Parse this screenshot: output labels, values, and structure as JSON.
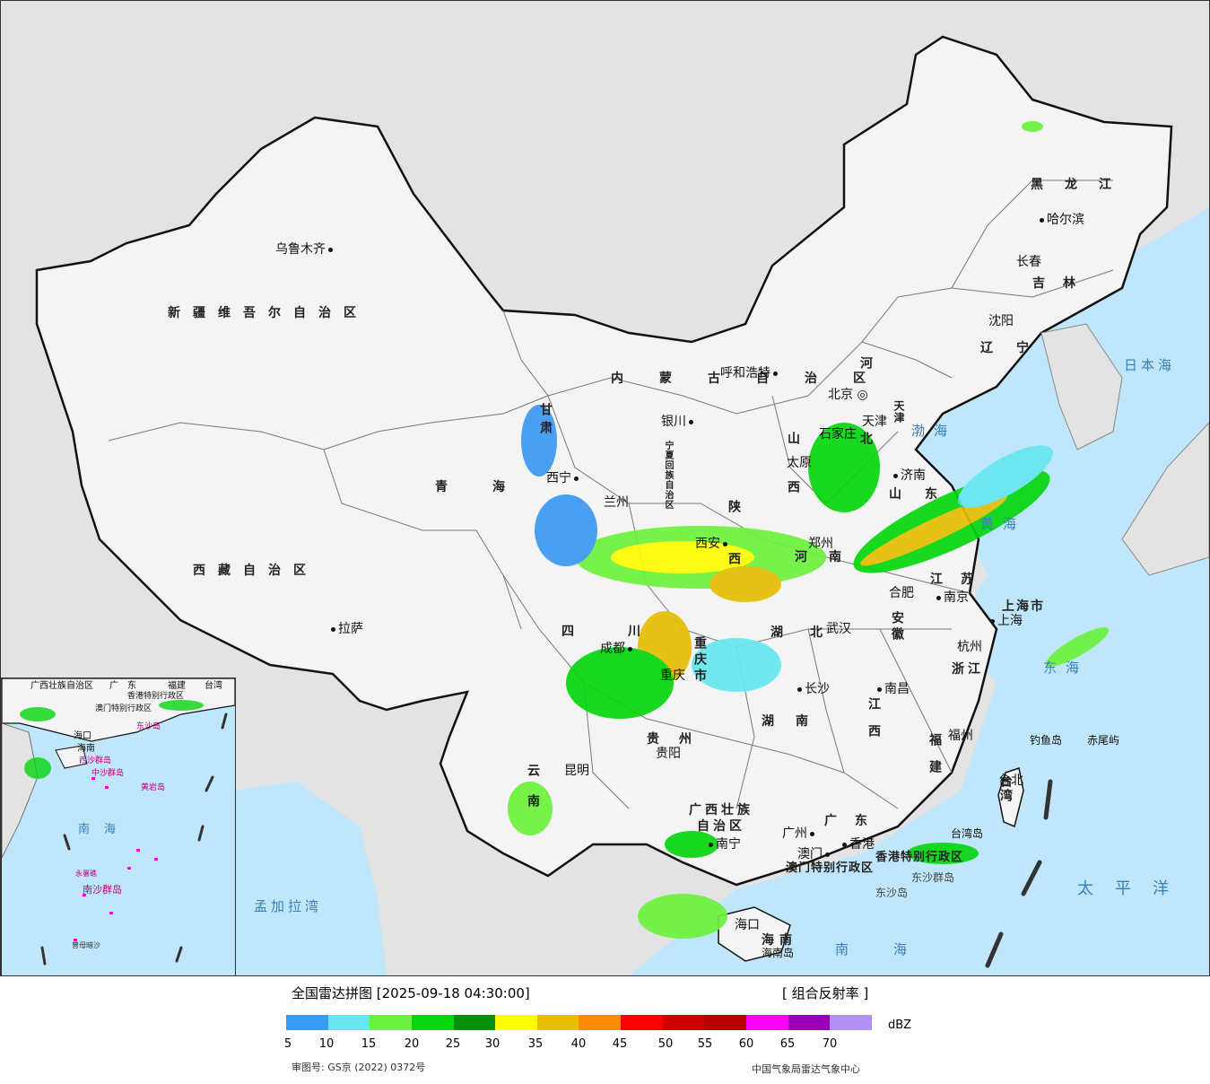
{
  "map": {
    "provinces": [
      {
        "key": "xinjiang",
        "name": "新疆维吾尔自治区"
      },
      {
        "key": "xizang",
        "name": "西藏自治区"
      },
      {
        "key": "qinghai",
        "name": "青海"
      },
      {
        "key": "gansu",
        "name": "甘肃"
      },
      {
        "key": "sichuan",
        "name": "四川"
      },
      {
        "key": "yunnan",
        "name": "云南"
      },
      {
        "key": "guizhou",
        "name": "贵州"
      },
      {
        "key": "guangxi",
        "name": "广西壮族自治区"
      },
      {
        "key": "guangdong",
        "name": "广东"
      },
      {
        "key": "hunan",
        "name": "湖南"
      },
      {
        "key": "hubei",
        "name": "湖北"
      },
      {
        "key": "jiangxi",
        "name": "江西"
      },
      {
        "key": "fujian",
        "name": "福建"
      },
      {
        "key": "zhejiang",
        "name": "浙江"
      },
      {
        "key": "jiangsu",
        "name": "江苏"
      },
      {
        "key": "anhui",
        "name": "安徽"
      },
      {
        "key": "henan",
        "name": "河南"
      },
      {
        "key": "shandong",
        "name": "山东"
      },
      {
        "key": "shanxi",
        "name": "山西"
      },
      {
        "key": "shaanxi",
        "name": "陕西"
      },
      {
        "key": "hebei",
        "name": "河北"
      },
      {
        "key": "neimenggu",
        "name": "内蒙古自治区"
      },
      {
        "key": "heilongjiang",
        "name": "黑龙江"
      },
      {
        "key": "jilin",
        "name": "吉林"
      },
      {
        "key": "liaoning",
        "name": "辽宁"
      },
      {
        "key": "ningxia",
        "name": "宁夏回族自治区"
      },
      {
        "key": "chongqing",
        "name": "重庆市"
      },
      {
        "key": "shanghai",
        "name": "上海市"
      },
      {
        "key": "tianjin",
        "name": "天津"
      },
      {
        "key": "taiwan",
        "name": "台湾"
      },
      {
        "key": "hainan",
        "name": "海南"
      },
      {
        "key": "hongkong",
        "name": "香港特别行政区"
      },
      {
        "key": "macau",
        "name": "澳门特别行政区"
      }
    ],
    "cities": {
      "urumqi": "乌鲁木齐",
      "lhasa": "拉萨",
      "xining": "西宁",
      "lanzhou": "兰州",
      "yinchuan": "银川",
      "hohhot": "呼和浩特",
      "beijing": "北京",
      "tianjin": "天津",
      "shijiazhuang": "石家庄",
      "taiyuan": "太原",
      "jinan": "济南",
      "zhengzhou": "郑州",
      "xian": "西安",
      "chengdu": "成都",
      "chongqing": "重庆",
      "guiyang": "贵阳",
      "kunming": "昆明",
      "nanning": "南宁",
      "guangzhou": "广州",
      "hongkong": "香港",
      "macau": "澳门",
      "haikou": "海口",
      "changsha": "长沙",
      "wuhan": "武汉",
      "nanchang": "南昌",
      "hefei": "合肥",
      "nanjing": "南京",
      "shanghai": "上海",
      "hangzhou": "杭州",
      "fuzhou": "福州",
      "taipei": "台北",
      "harbin": "哈尔滨",
      "changchun": "长春",
      "shenyang": "沈阳"
    },
    "islands": {
      "diaoyu": "钓鱼岛",
      "chiwei": "赤尾屿",
      "taiwan_island": "台湾岛",
      "dongsha_islands": "东沙群岛",
      "dongsha_island": "东沙岛",
      "hainan_island": "海南岛"
    },
    "seas": {
      "bohai": "渤海",
      "huanghai": "黄海",
      "donghai": "东海",
      "nanhai": "南海",
      "riben": "日本海",
      "taipingyang": "太平洋",
      "mengjiala": "孟加拉湾"
    },
    "inset": {
      "labels": {
        "guangxi": "广西壮族自治区",
        "guangdong": "广东",
        "fujian": "福建",
        "taiwan": "台湾",
        "hongkong": "香港特别行政区",
        "macau": "澳门特别行政区",
        "haikou": "海口",
        "hainan": "海南",
        "xisha": "西沙群岛",
        "zhongsha": "中沙群岛",
        "huangyan": "黄岩岛",
        "nanhai": "南海",
        "nansha": "南沙群岛",
        "yongshu": "永暑礁",
        "zengmu": "曾母暗沙",
        "dongsha": "东沙岛"
      }
    }
  },
  "legend": {
    "title": "全国雷达拼图 [2025-09-18 04:30:00]",
    "product": "[ 组合反射率 ]",
    "unit": "dBZ",
    "colors": [
      "#3a99f2",
      "#66e6ef",
      "#6bf23c",
      "#06d60e",
      "#068f0a",
      "#fcfc03",
      "#e6be03",
      "#fb8c04",
      "#fa0000",
      "#d00000",
      "#b90000",
      "#fc00fc",
      "#9a00b7",
      "#b192f3"
    ],
    "ticks": [
      "5",
      "10",
      "15",
      "20",
      "25",
      "30",
      "35",
      "40",
      "45",
      "50",
      "55",
      "60",
      "65",
      "70"
    ],
    "review_number": "审图号: GS京 (2022) 0372号",
    "producer": "中国气象局雷达气象中心"
  }
}
